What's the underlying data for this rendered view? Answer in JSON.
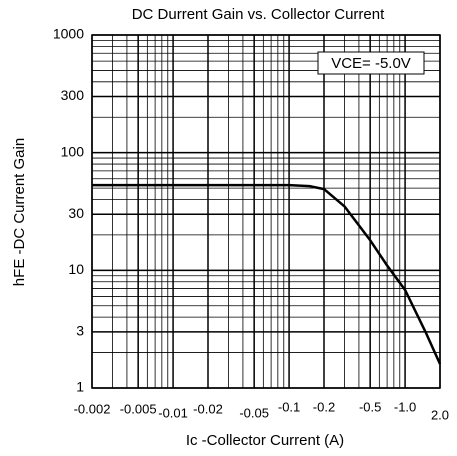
{
  "chart_data": {
    "type": "line",
    "title": "DC Durrent Gain vs. Collector Current",
    "x_label": "Ic -Collector Current (A)",
    "y_label": "hFE -DC Current Gain",
    "annotation": "VCE= -5.0V",
    "log_x": true,
    "log_y": true,
    "grid": true,
    "minor_grid": true,
    "xlim": [
      -0.002,
      -2.0
    ],
    "xticks": [
      -0.002,
      -0.005,
      -0.01,
      -0.02,
      -0.05,
      -0.1,
      -0.2,
      -0.5,
      {
        "value": -1.0,
        "label": "-1.0"
      },
      {
        "value": -2.0,
        "label": "2.0"
      }
    ],
    "ylim": [
      1,
      1000
    ],
    "yticks": [
      1,
      3,
      10,
      30,
      100,
      300,
      1000
    ],
    "series": [
      {
        "color": "#000000",
        "x": [
          -0.002,
          -0.005,
          -0.01,
          -0.02,
          -0.05,
          -0.1,
          -0.15,
          -0.2,
          -0.3,
          -0.5,
          -0.7,
          -1.0,
          -1.5,
          -2.0
        ],
        "values": [
          53,
          53,
          53,
          53,
          53,
          53,
          52,
          49,
          35,
          18,
          11,
          6.8,
          3,
          1.6
        ]
      }
    ]
  }
}
